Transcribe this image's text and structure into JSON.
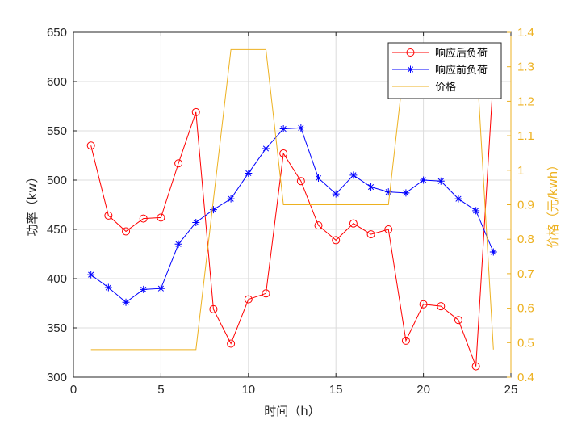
{
  "chart_data": {
    "type": "line",
    "xlabel": "时间（h）",
    "ylabel": "功率（kw）",
    "y2label": "价格（元/kwh）",
    "xlim": [
      0,
      25
    ],
    "ylim": [
      300,
      650
    ],
    "y2lim": [
      0.4,
      1.4
    ],
    "x_ticks": [
      0,
      5,
      10,
      15,
      20,
      25
    ],
    "y_ticks": [
      300,
      350,
      400,
      450,
      500,
      550,
      600,
      650
    ],
    "y2_ticks": [
      0.4,
      0.5,
      0.6,
      0.7,
      0.8,
      0.9,
      1,
      1.1,
      1.2,
      1.3,
      1.4
    ],
    "x_tick_labels": [
      "0",
      "5",
      "10",
      "15",
      "20",
      "25"
    ],
    "y_tick_labels": [
      "300",
      "350",
      "400",
      "450",
      "500",
      "550",
      "600",
      "650"
    ],
    "y2_tick_labels": [
      "0.4",
      "0.5",
      "0.6",
      "0.7",
      "0.8",
      "0.9",
      "1",
      "1.1",
      "1.2",
      "1.3",
      "1.4"
    ],
    "grid": true,
    "legend_position": "top-right",
    "x": [
      1,
      2,
      3,
      4,
      5,
      6,
      7,
      8,
      9,
      10,
      11,
      12,
      13,
      14,
      15,
      16,
      17,
      18,
      19,
      20,
      21,
      22,
      23,
      24
    ],
    "series": [
      {
        "name": "响应后负荷",
        "axis": "left",
        "color": "#FF0000",
        "marker": "circle",
        "values": [
          535,
          464,
          448,
          461,
          462,
          517,
          569,
          369,
          334,
          379,
          385,
          527,
          499,
          454,
          439,
          456,
          445,
          450,
          337,
          374,
          372,
          358,
          311,
          606
        ]
      },
      {
        "name": "响应前负荷",
        "axis": "left",
        "color": "#0000FF",
        "marker": "star",
        "values": [
          404,
          391,
          376,
          389,
          390,
          435,
          457,
          470,
          481,
          507,
          532,
          552,
          553,
          502,
          486,
          505,
          493,
          488,
          487,
          500,
          499,
          481,
          469,
          427
        ]
      },
      {
        "name": "价格",
        "axis": "right",
        "color": "#EDB120",
        "marker": "none",
        "points": [
          [
            1,
            0.48
          ],
          [
            7,
            0.48
          ],
          [
            9,
            1.35
          ],
          [
            11,
            1.35
          ],
          [
            12,
            0.9
          ],
          [
            18,
            0.9
          ],
          [
            19,
            1.35
          ],
          [
            23,
            1.35
          ],
          [
            24,
            0.48
          ]
        ]
      }
    ]
  }
}
